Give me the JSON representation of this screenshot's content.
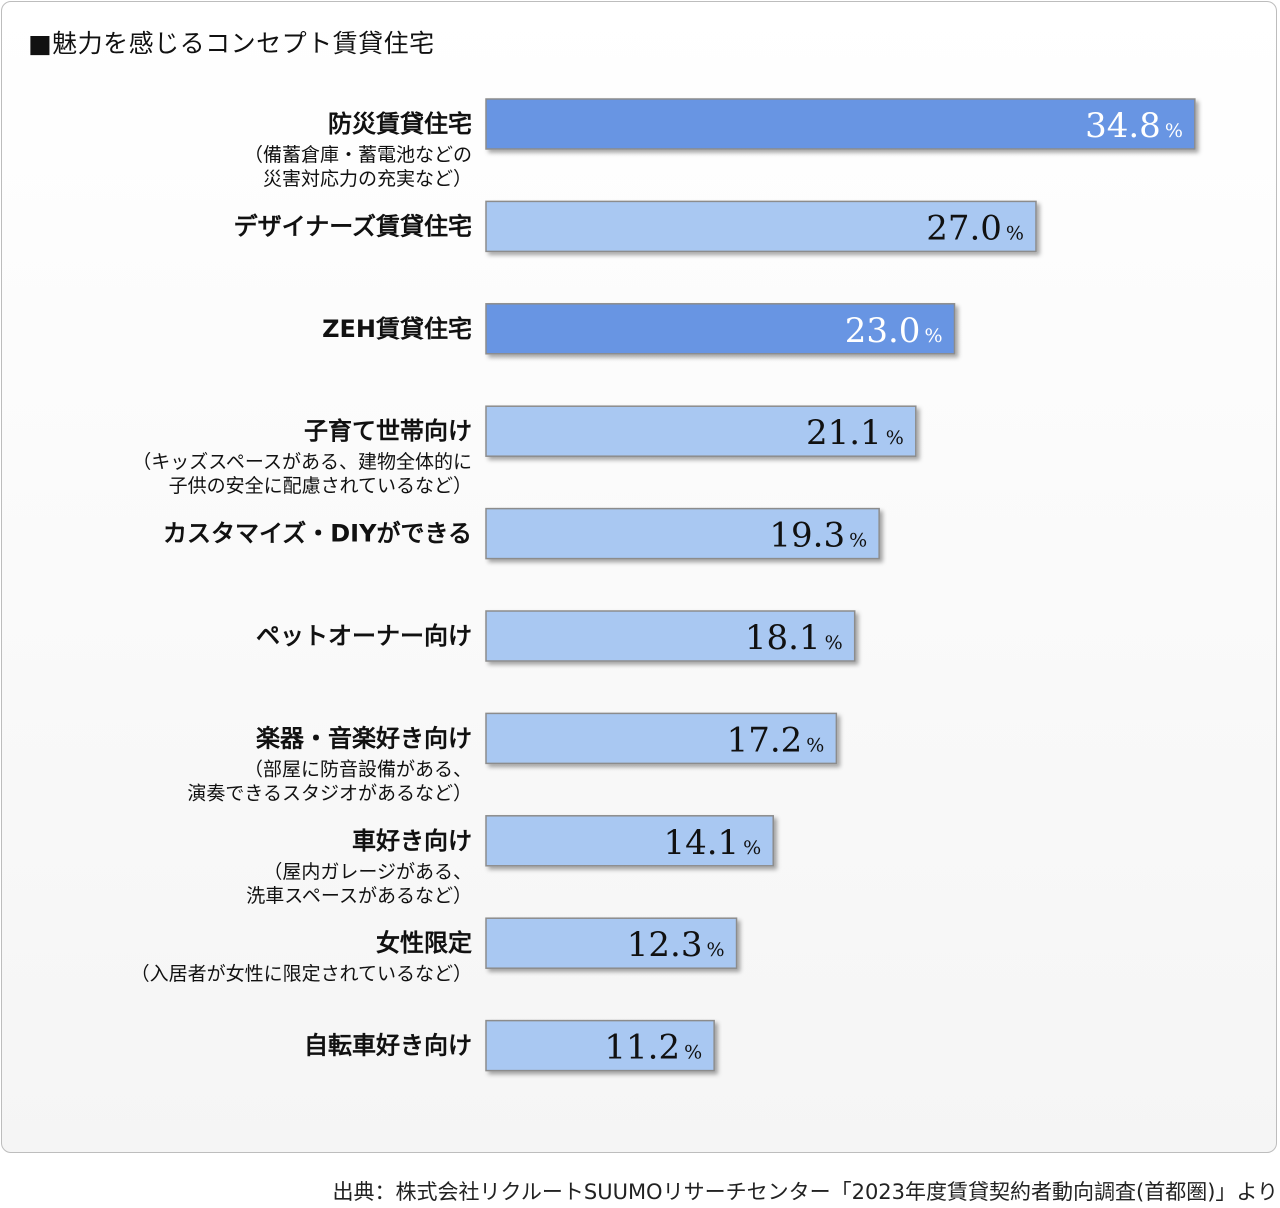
{
  "chart_data": {
    "type": "bar",
    "orientation": "horizontal",
    "title": "■魅力を感じるコンセプト賃貸住宅",
    "unit": "%",
    "categories": [
      {
        "label": "防災賃貸住宅",
        "sub": [
          "（備蓄倉庫・蓄電池などの",
          "災害対応力の充実など）"
        ],
        "value": 34.8,
        "value_text": "34.8",
        "highlight": true
      },
      {
        "label": "デザイナーズ賃貸住宅",
        "sub": [],
        "value": 27.0,
        "value_text": "27.0",
        "highlight": false
      },
      {
        "label": "ZEH賃貸住宅",
        "sub": [],
        "value": 23.0,
        "value_text": "23.0",
        "highlight": true
      },
      {
        "label": "子育て世帯向け",
        "sub": [
          "（キッズスペースがある、建物全体的に",
          "子供の安全に配慮されているなど）"
        ],
        "value": 21.1,
        "value_text": "21.1",
        "highlight": false
      },
      {
        "label": "カスタマイズ・DIYができる",
        "sub": [],
        "value": 19.3,
        "value_text": "19.3",
        "highlight": false
      },
      {
        "label": "ペットオーナー向け",
        "sub": [],
        "value": 18.1,
        "value_text": "18.1",
        "highlight": false
      },
      {
        "label": "楽器・音楽好き向け",
        "sub": [
          "（部屋に防音設備がある、",
          "演奏できるスタジオがあるなど）"
        ],
        "value": 17.2,
        "value_text": "17.2",
        "highlight": false
      },
      {
        "label": "車好き向け",
        "sub": [
          "（屋内ガレージがある、",
          "洗車スペースがあるなど）"
        ],
        "value": 14.1,
        "value_text": "14.1",
        "highlight": false
      },
      {
        "label": "女性限定",
        "sub": [
          "（入居者が女性に限定されているなど）"
        ],
        "value": 12.3,
        "value_text": "12.3",
        "highlight": false
      },
      {
        "label": "自転車好き向け",
        "sub": [],
        "value": 11.2,
        "value_text": "11.2",
        "highlight": false
      }
    ],
    "colors": {
      "highlight_bar": "#6795e3",
      "normal_bar": "#a9c8f2",
      "bar_border": "#8c8c8c",
      "highlight_text": "#ffffff",
      "normal_text": "#111111"
    }
  },
  "source": "出典：株式会社リクルートSUUMOリサーチセンター「2023年度賃貸契約者動向調査(首都圏)」より"
}
